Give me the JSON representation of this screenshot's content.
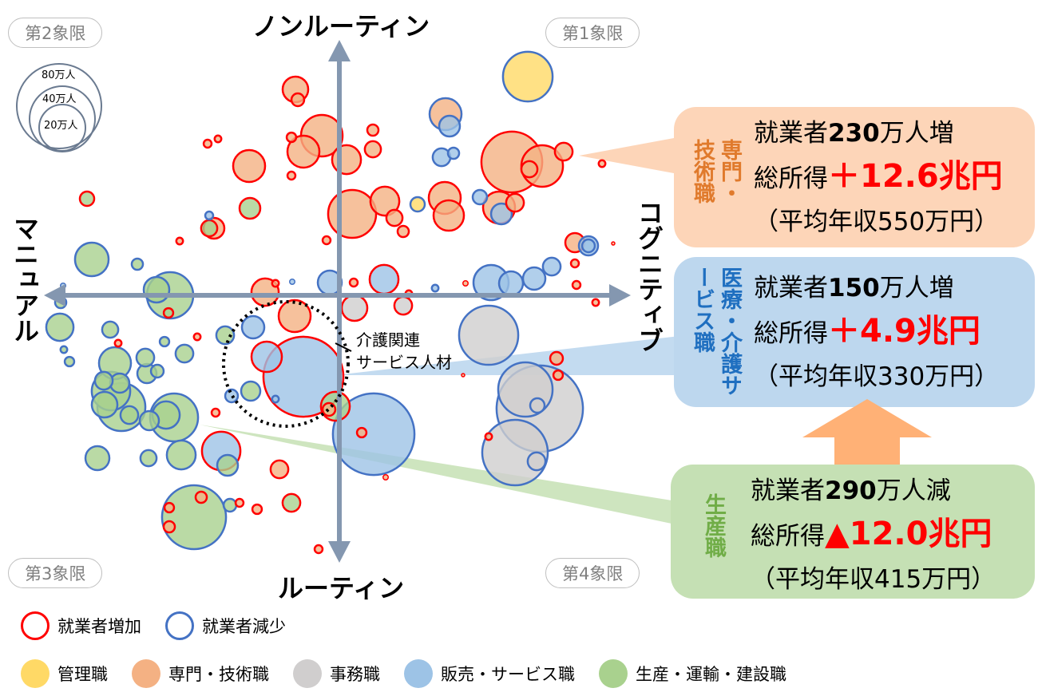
{
  "axes": {
    "top": "ノンルーティン",
    "bottom": "ルーティン",
    "left": "マニュアル",
    "right": "コグニティブ"
  },
  "quadrants": {
    "q1": "第1象限",
    "q2": "第2象限",
    "q3": "第3象限",
    "q4": "第4象限"
  },
  "size_legend": [
    "80万人",
    "40万人",
    "20万人"
  ],
  "size_legend_values": [
    80,
    40,
    20
  ],
  "annotation": {
    "line1": "介護関連",
    "line2": "サービス人材"
  },
  "callouts": [
    {
      "title": "専門・技術職",
      "workers_prefix": "就業者",
      "workers_value": "230",
      "workers_suffix": "万人増",
      "income_prefix": "総所得",
      "income_value": "＋12.6兆円",
      "salary": "（平均年収550万円）"
    },
    {
      "title": "医療・介護サービス職",
      "workers_prefix": "就業者",
      "workers_value": "150",
      "workers_suffix": "万人増",
      "income_prefix": "総所得",
      "income_value": "＋4.9兆円",
      "salary": "（平均年収330万円）"
    },
    {
      "title": "生産職",
      "workers_prefix": "就業者",
      "workers_value": "290",
      "workers_suffix": "万人減",
      "income_prefix": "総所得",
      "income_value": "▲12.0兆円",
      "salary": "（平均年収415万円）"
    }
  ],
  "legend": {
    "border": [
      {
        "label": "就業者増加",
        "color": "#ff0000"
      },
      {
        "label": "就業者減少",
        "color": "#4472c4"
      }
    ],
    "fill": [
      {
        "key": "m",
        "label": "管理職",
        "color": "#ffd966"
      },
      {
        "key": "p",
        "label": "専門・技術職",
        "color": "#f4b183"
      },
      {
        "key": "o",
        "label": "事務職",
        "color": "#d0cece"
      },
      {
        "key": "s",
        "label": "販売・サービス職",
        "color": "#9dc3e6"
      },
      {
        "key": "g",
        "label": "生産・運輸・建設職",
        "color": "#a9d18e"
      }
    ]
  },
  "colors": {
    "axis": "#8497b0",
    "increase": "#ff0000",
    "decrease": "#4472c4",
    "callout_pro": "#fdd5b8",
    "callout_service": "#bdd7ee",
    "callout_prod": "#c5e0b4",
    "arrow": "#ffb176"
  },
  "chart_data": {
    "type": "scatter",
    "title": "",
    "xlabel_negative": "マニュアル",
    "xlabel_positive": "コグニティブ",
    "ylabel_negative": "ルーティン",
    "ylabel_positive": "ノンルーティン",
    "xlim": [
      -92,
      92
    ],
    "ylim": [
      -84,
      84
    ],
    "size_unit": "万人",
    "fields": [
      "x",
      "y",
      "size",
      "category",
      "trend"
    ],
    "bubbles": [
      [
        59,
        68.5,
        27.5,
        "m",
        "dec"
      ],
      [
        -13.75,
        64.5,
        7.3,
        "p",
        "inc"
      ],
      [
        -13,
        61.25,
        1.8,
        "p",
        "inc"
      ],
      [
        -5.5,
        50,
        19.3,
        "p",
        "inc"
      ],
      [
        -11.25,
        45,
        11.4,
        "p",
        "inc"
      ],
      [
        -28.25,
        40.5,
        11.4,
        "p",
        "inc"
      ],
      [
        -15,
        49.5,
        1.0,
        "p",
        "inc"
      ],
      [
        -15,
        37.5,
        0.7,
        "p",
        "inc"
      ],
      [
        -41.25,
        47.5,
        0.7,
        "p",
        "inc"
      ],
      [
        -38,
        49,
        0.5,
        "p",
        "inc"
      ],
      [
        2.25,
        42.5,
        9.3,
        "p",
        "inc"
      ],
      [
        10.5,
        51.75,
        1.4,
        "p",
        "inc"
      ],
      [
        10.5,
        45.75,
        2.9,
        "p",
        "inc"
      ],
      [
        4,
        25.5,
        25.7,
        "p",
        "inc"
      ],
      [
        14.25,
        29.5,
        9.3,
        "p",
        "inc"
      ],
      [
        17.25,
        24.25,
        2.9,
        "p",
        "inc"
      ],
      [
        20,
        20,
        1.4,
        "p",
        "inc"
      ],
      [
        33.25,
        56.75,
        11.4,
        "p",
        "dec"
      ],
      [
        34.5,
        53,
        4.8,
        "s",
        "dec"
      ],
      [
        32,
        43.25,
        3.5,
        "s",
        "dec"
      ],
      [
        35.75,
        44.5,
        1.4,
        "s",
        "dec"
      ],
      [
        54,
        41.75,
        41.3,
        "p",
        "inc"
      ],
      [
        63.5,
        40.5,
        19.3,
        "p",
        "inc"
      ],
      [
        70.25,
        45,
        3.5,
        "p",
        "inc"
      ],
      [
        82.25,
        41.25,
        0.5,
        "p",
        "inc"
      ],
      [
        59.5,
        39.5,
        2.9,
        "p",
        "inc"
      ],
      [
        33,
        30.5,
        11.4,
        "p",
        "inc"
      ],
      [
        34.25,
        25,
        10.3,
        "p",
        "inc"
      ],
      [
        24.5,
        28.5,
        2.3,
        "m",
        "dec"
      ],
      [
        44,
        30.75,
        2.3,
        "s",
        "dec"
      ],
      [
        50,
        27.5,
        11.4,
        "p",
        "inc"
      ],
      [
        50.75,
        25.5,
        4.8,
        "s",
        "dec"
      ],
      [
        55,
        29,
        3.5,
        "p",
        "inc"
      ],
      [
        73.75,
        16.5,
        4.1,
        "p",
        "inc"
      ],
      [
        78,
        15.5,
        4.1,
        "s",
        "dec"
      ],
      [
        78,
        15.5,
        1.8,
        "s",
        "dec"
      ],
      [
        66.5,
        9,
        3.5,
        "s",
        "dec"
      ],
      [
        61,
        5.25,
        5.6,
        "s",
        "dec"
      ],
      [
        73.75,
        10,
        0.7,
        "p",
        "inc"
      ],
      [
        85.75,
        16.25,
        0.1,
        "p",
        "inc"
      ],
      [
        47.5,
        4,
        13.8,
        "s",
        "dec"
      ],
      [
        53.75,
        3.75,
        6.4,
        "s",
        "dec"
      ],
      [
        74.25,
        3.25,
        0.7,
        "p",
        "inc"
      ],
      [
        80.25,
        -2.25,
        0.5,
        "p",
        "inc"
      ],
      [
        39.5,
        3.75,
        0.3,
        "p",
        "inc"
      ],
      [
        -39.25,
        21,
        4.8,
        "p",
        "inc"
      ],
      [
        -40.75,
        21,
        2.9,
        "g",
        "inc"
      ],
      [
        -40.75,
        25,
        0.7,
        "s",
        "dec"
      ],
      [
        -50,
        17,
        0.5,
        "p",
        "inc"
      ],
      [
        -28,
        27.25,
        4.8,
        "g",
        "inc"
      ],
      [
        -79,
        30.25,
        2.3,
        "g",
        "inc"
      ],
      [
        -4,
        17.25,
        0.7,
        "p",
        "inc"
      ],
      [
        -77.5,
        11.25,
        12.6,
        "g",
        "dec"
      ],
      [
        -63.25,
        9.75,
        1.4,
        "g",
        "dec"
      ],
      [
        -57.25,
        1.75,
        7.3,
        "g",
        "dec"
      ],
      [
        -53,
        0,
        24,
        "g",
        "dec"
      ],
      [
        -86.5,
        3,
        0.3,
        "s",
        "dec"
      ],
      [
        -53.5,
        -5.5,
        1.0,
        "g",
        "inc"
      ],
      [
        -87.25,
        -2.25,
        1.4,
        "g",
        "dec"
      ],
      [
        -87.5,
        -10,
        8.3,
        "g",
        "dec"
      ],
      [
        -14.75,
        4.25,
        0.3,
        "s",
        "dec"
      ],
      [
        -23.25,
        1,
        8.3,
        "p",
        "inc"
      ],
      [
        -20,
        3.75,
        0.5,
        "p",
        "inc"
      ],
      [
        -3,
        4,
        6.4,
        "s",
        "dec"
      ],
      [
        4.5,
        4,
        0.7,
        "p",
        "inc"
      ],
      [
        14,
        5,
        9.3,
        "s",
        "inc"
      ],
      [
        -14,
        -6.5,
        11.4,
        "p",
        "inc"
      ],
      [
        -27,
        -10,
        5.6,
        "s",
        "dec"
      ],
      [
        4.75,
        -4,
        7.3,
        "o",
        "inc"
      ],
      [
        20,
        -3.25,
        3.5,
        "o",
        "inc"
      ],
      [
        21.75,
        0.5,
        0.5,
        "p",
        "inc"
      ],
      [
        30,
        2.25,
        0.5,
        "s",
        "dec"
      ],
      [
        -11.25,
        -25.5,
        71.4,
        "s",
        "inc"
      ],
      [
        -22.75,
        -19.25,
        10.3,
        "s",
        "inc"
      ],
      [
        -1.25,
        -34.75,
        9.3,
        "g",
        "inc"
      ],
      [
        -3.25,
        -35.75,
        1.8,
        "p",
        "inc"
      ],
      [
        46.75,
        -12.5,
        39.1,
        "o",
        "dec"
      ],
      [
        10.75,
        -43.5,
        74.3,
        "s",
        "dec"
      ],
      [
        7,
        -43,
        1.0,
        "p",
        "inc"
      ],
      [
        58.25,
        -29.5,
        33,
        "o",
        "dec"
      ],
      [
        62.75,
        -35.5,
        83.3,
        "o",
        "dec"
      ],
      [
        55,
        -49.25,
        48,
        "o",
        "dec"
      ],
      [
        61.75,
        -52,
        3.5,
        "o",
        "dec"
      ],
      [
        62,
        -34.5,
        2.3,
        "o",
        "dec"
      ],
      [
        68,
        -19.75,
        1.8,
        "p",
        "inc"
      ],
      [
        68.5,
        -25,
        1.0,
        "p",
        "inc"
      ],
      [
        46.75,
        -44.25,
        0.5,
        "p",
        "inc"
      ],
      [
        38.75,
        -25,
        0.1,
        "p",
        "inc"
      ],
      [
        -70.25,
        -21.25,
        11.4,
        "g",
        "dec"
      ],
      [
        -68.75,
        -27.5,
        4.1,
        "g",
        "dec"
      ],
      [
        -73.75,
        -26.75,
        3.5,
        "g",
        "dec"
      ],
      [
        -71.5,
        -30,
        16.5,
        "g",
        "dec"
      ],
      [
        -73.5,
        -34.25,
        7.3,
        "g",
        "dec"
      ],
      [
        -68.25,
        -35,
        25.7,
        "g",
        "dec"
      ],
      [
        -65.75,
        -37.5,
        3.5,
        "g",
        "dec"
      ],
      [
        -60.25,
        -24.5,
        4.1,
        "g",
        "dec"
      ],
      [
        -57,
        -23.75,
        1.8,
        "g",
        "dec"
      ],
      [
        -60.75,
        -19.5,
        3.5,
        "g",
        "dec"
      ],
      [
        -51.75,
        -38.25,
        25.7,
        "g",
        "dec"
      ],
      [
        -54.25,
        -37.5,
        8.3,
        "g",
        "dec"
      ],
      [
        -59.5,
        -39.25,
        4.1,
        "g",
        "dec"
      ],
      [
        -59.75,
        -51,
        2.9,
        "g",
        "dec"
      ],
      [
        -49.5,
        -50,
        9.3,
        "g",
        "dec"
      ],
      [
        -75.75,
        -51,
        6.4,
        "g",
        "dec"
      ],
      [
        -71.75,
        -10.75,
        2.9,
        "g",
        "dec"
      ],
      [
        -84.5,
        -20.75,
        1.0,
        "g",
        "dec"
      ],
      [
        -86.25,
        -17,
        0.5,
        "g",
        "dec"
      ],
      [
        -54.75,
        -14.5,
        1.0,
        "g",
        "dec"
      ],
      [
        -48.5,
        -18.25,
        3.5,
        "g",
        "dec"
      ],
      [
        -44.5,
        -13,
        0.5,
        "p",
        "inc"
      ],
      [
        -35.75,
        -12.5,
        3.5,
        "g",
        "dec"
      ],
      [
        -33.75,
        -31.5,
        1.8,
        "s",
        "dec"
      ],
      [
        -27.75,
        -30,
        4.1,
        "g",
        "dec"
      ],
      [
        -38.75,
        -36.75,
        0.7,
        "p",
        "inc"
      ],
      [
        -37,
        -48.75,
        16.5,
        "s",
        "inc"
      ],
      [
        -35,
        -53.25,
        4.8,
        "g",
        "dec"
      ],
      [
        -18.75,
        -54.5,
        3.5,
        "p",
        "inc"
      ],
      [
        -45.5,
        -69.5,
        45.7,
        "g",
        "dec"
      ],
      [
        -53.25,
        -66.5,
        1.0,
        "p",
        "inc"
      ],
      [
        -53.25,
        -72.5,
        1.4,
        "p",
        "inc"
      ],
      [
        -43.25,
        -63.25,
        1.4,
        "p",
        "inc"
      ],
      [
        -34.25,
        -65.75,
        1.8,
        "g",
        "dec"
      ],
      [
        -31.25,
        -65,
        0.7,
        "p",
        "inc"
      ],
      [
        -25.75,
        -67,
        1.0,
        "p",
        "inc"
      ],
      [
        -15,
        -65,
        3.5,
        "g",
        "inc"
      ],
      [
        -6.5,
        -79.5,
        0.7,
        "p",
        "inc"
      ],
      [
        14.5,
        -57,
        0.3,
        "p",
        "inc"
      ],
      [
        -69.25,
        -15,
        0.5,
        "p",
        "inc"
      ],
      [
        -20,
        -32.5,
        0.5,
        "s",
        "dec"
      ]
    ]
  }
}
